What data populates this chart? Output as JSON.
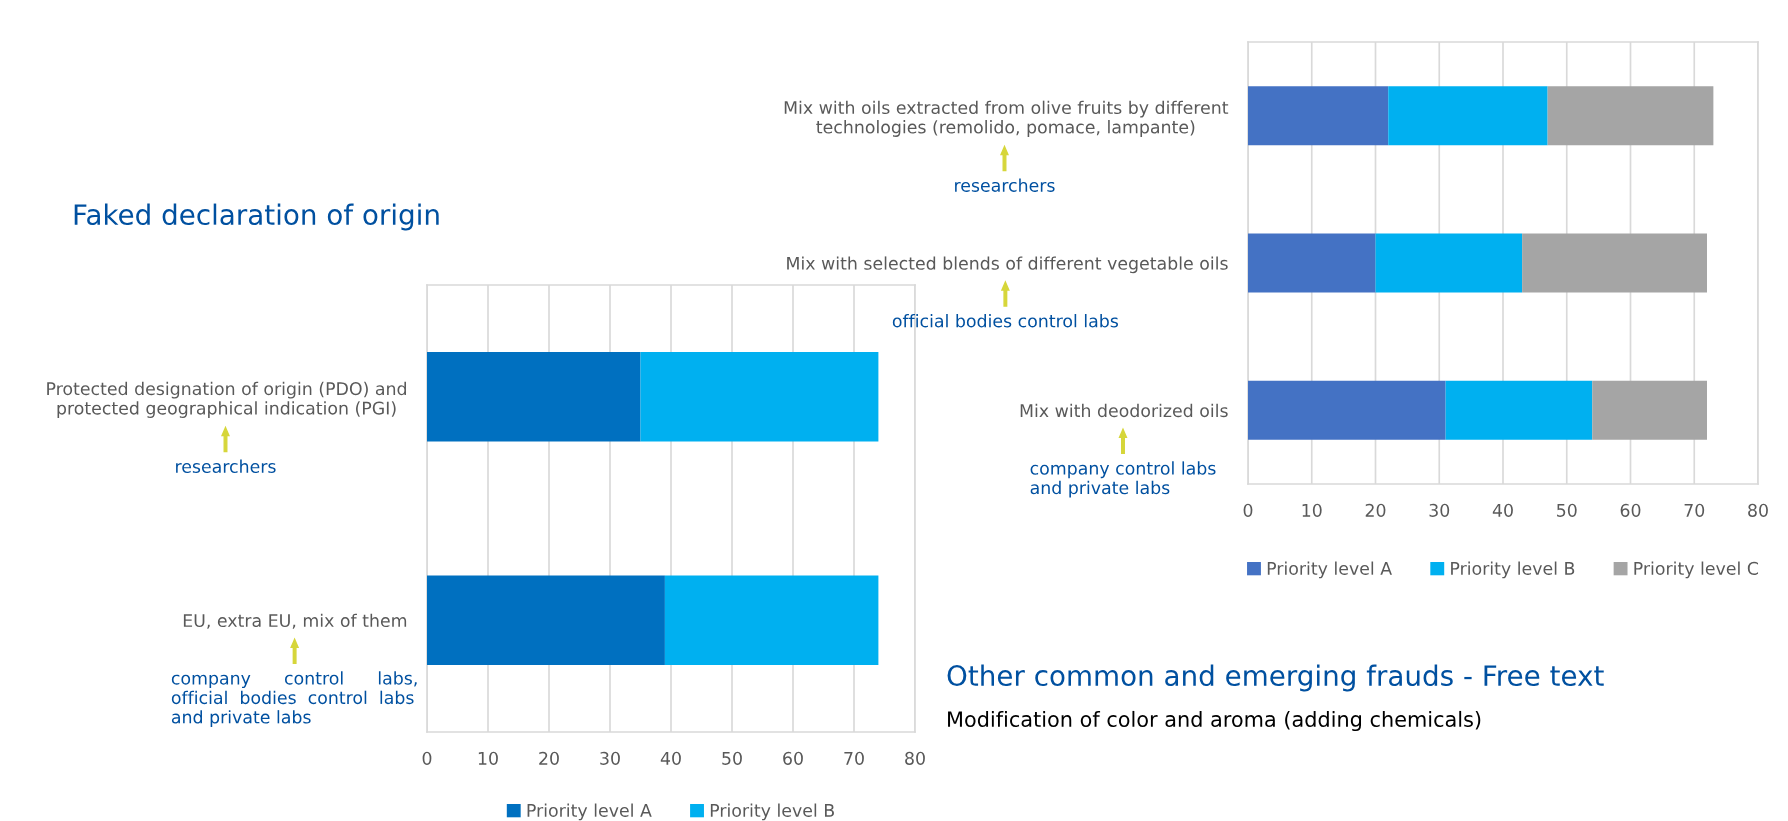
{
  "chart_data": [
    {
      "type": "bar",
      "orientation": "horizontal",
      "stacked": true,
      "title": "Faked declaration of origin",
      "categories": [
        "Protected designation of origin (PDO) and\nprotected geographical indication (PGI)",
        "EU, extra EU, mix of them"
      ],
      "series": [
        {
          "name": "Priority level A",
          "color": "#0070c0",
          "values": [
            35,
            39
          ]
        },
        {
          "name": "Priority level B",
          "color": "#00b0f0",
          "values": [
            39,
            35
          ]
        }
      ],
      "xlim": [
        0,
        80
      ],
      "xticks": [
        0,
        10,
        20,
        30,
        40,
        50,
        60,
        70,
        80
      ],
      "grid": "x",
      "legend": "bottom",
      "annotations": [
        "researchers",
        "company      control      labs,\nofficial  bodies  control  labs\nand private labs"
      ]
    },
    {
      "type": "bar",
      "orientation": "horizontal",
      "stacked": true,
      "categories": [
        "Mix with oils extracted from olive fruits by different\ntechnologies (remolido, pomace, lampante)",
        "Mix with selected blends of different vegetable oils",
        "Mix with deodorized oils"
      ],
      "series": [
        {
          "name": "Priority level A",
          "color": "#4472c4",
          "values": [
            22,
            20,
            31
          ]
        },
        {
          "name": "Priority level B",
          "color": "#00b0f0",
          "values": [
            25,
            23,
            23
          ]
        },
        {
          "name": "Priority level C",
          "color": "#a5a5a5",
          "values": [
            26,
            29,
            18
          ]
        }
      ],
      "xlim": [
        0,
        80
      ],
      "xticks": [
        0,
        10,
        20,
        30,
        40,
        50,
        60,
        70,
        80
      ],
      "grid": "x",
      "legend": "bottom",
      "annotations": [
        "researchers",
        "official bodies control labs",
        "company control labs\nand private labs",
        "Other common and emerging frauds - Free text",
        "Modification of color and aroma (adding chemicals)"
      ]
    }
  ]
}
